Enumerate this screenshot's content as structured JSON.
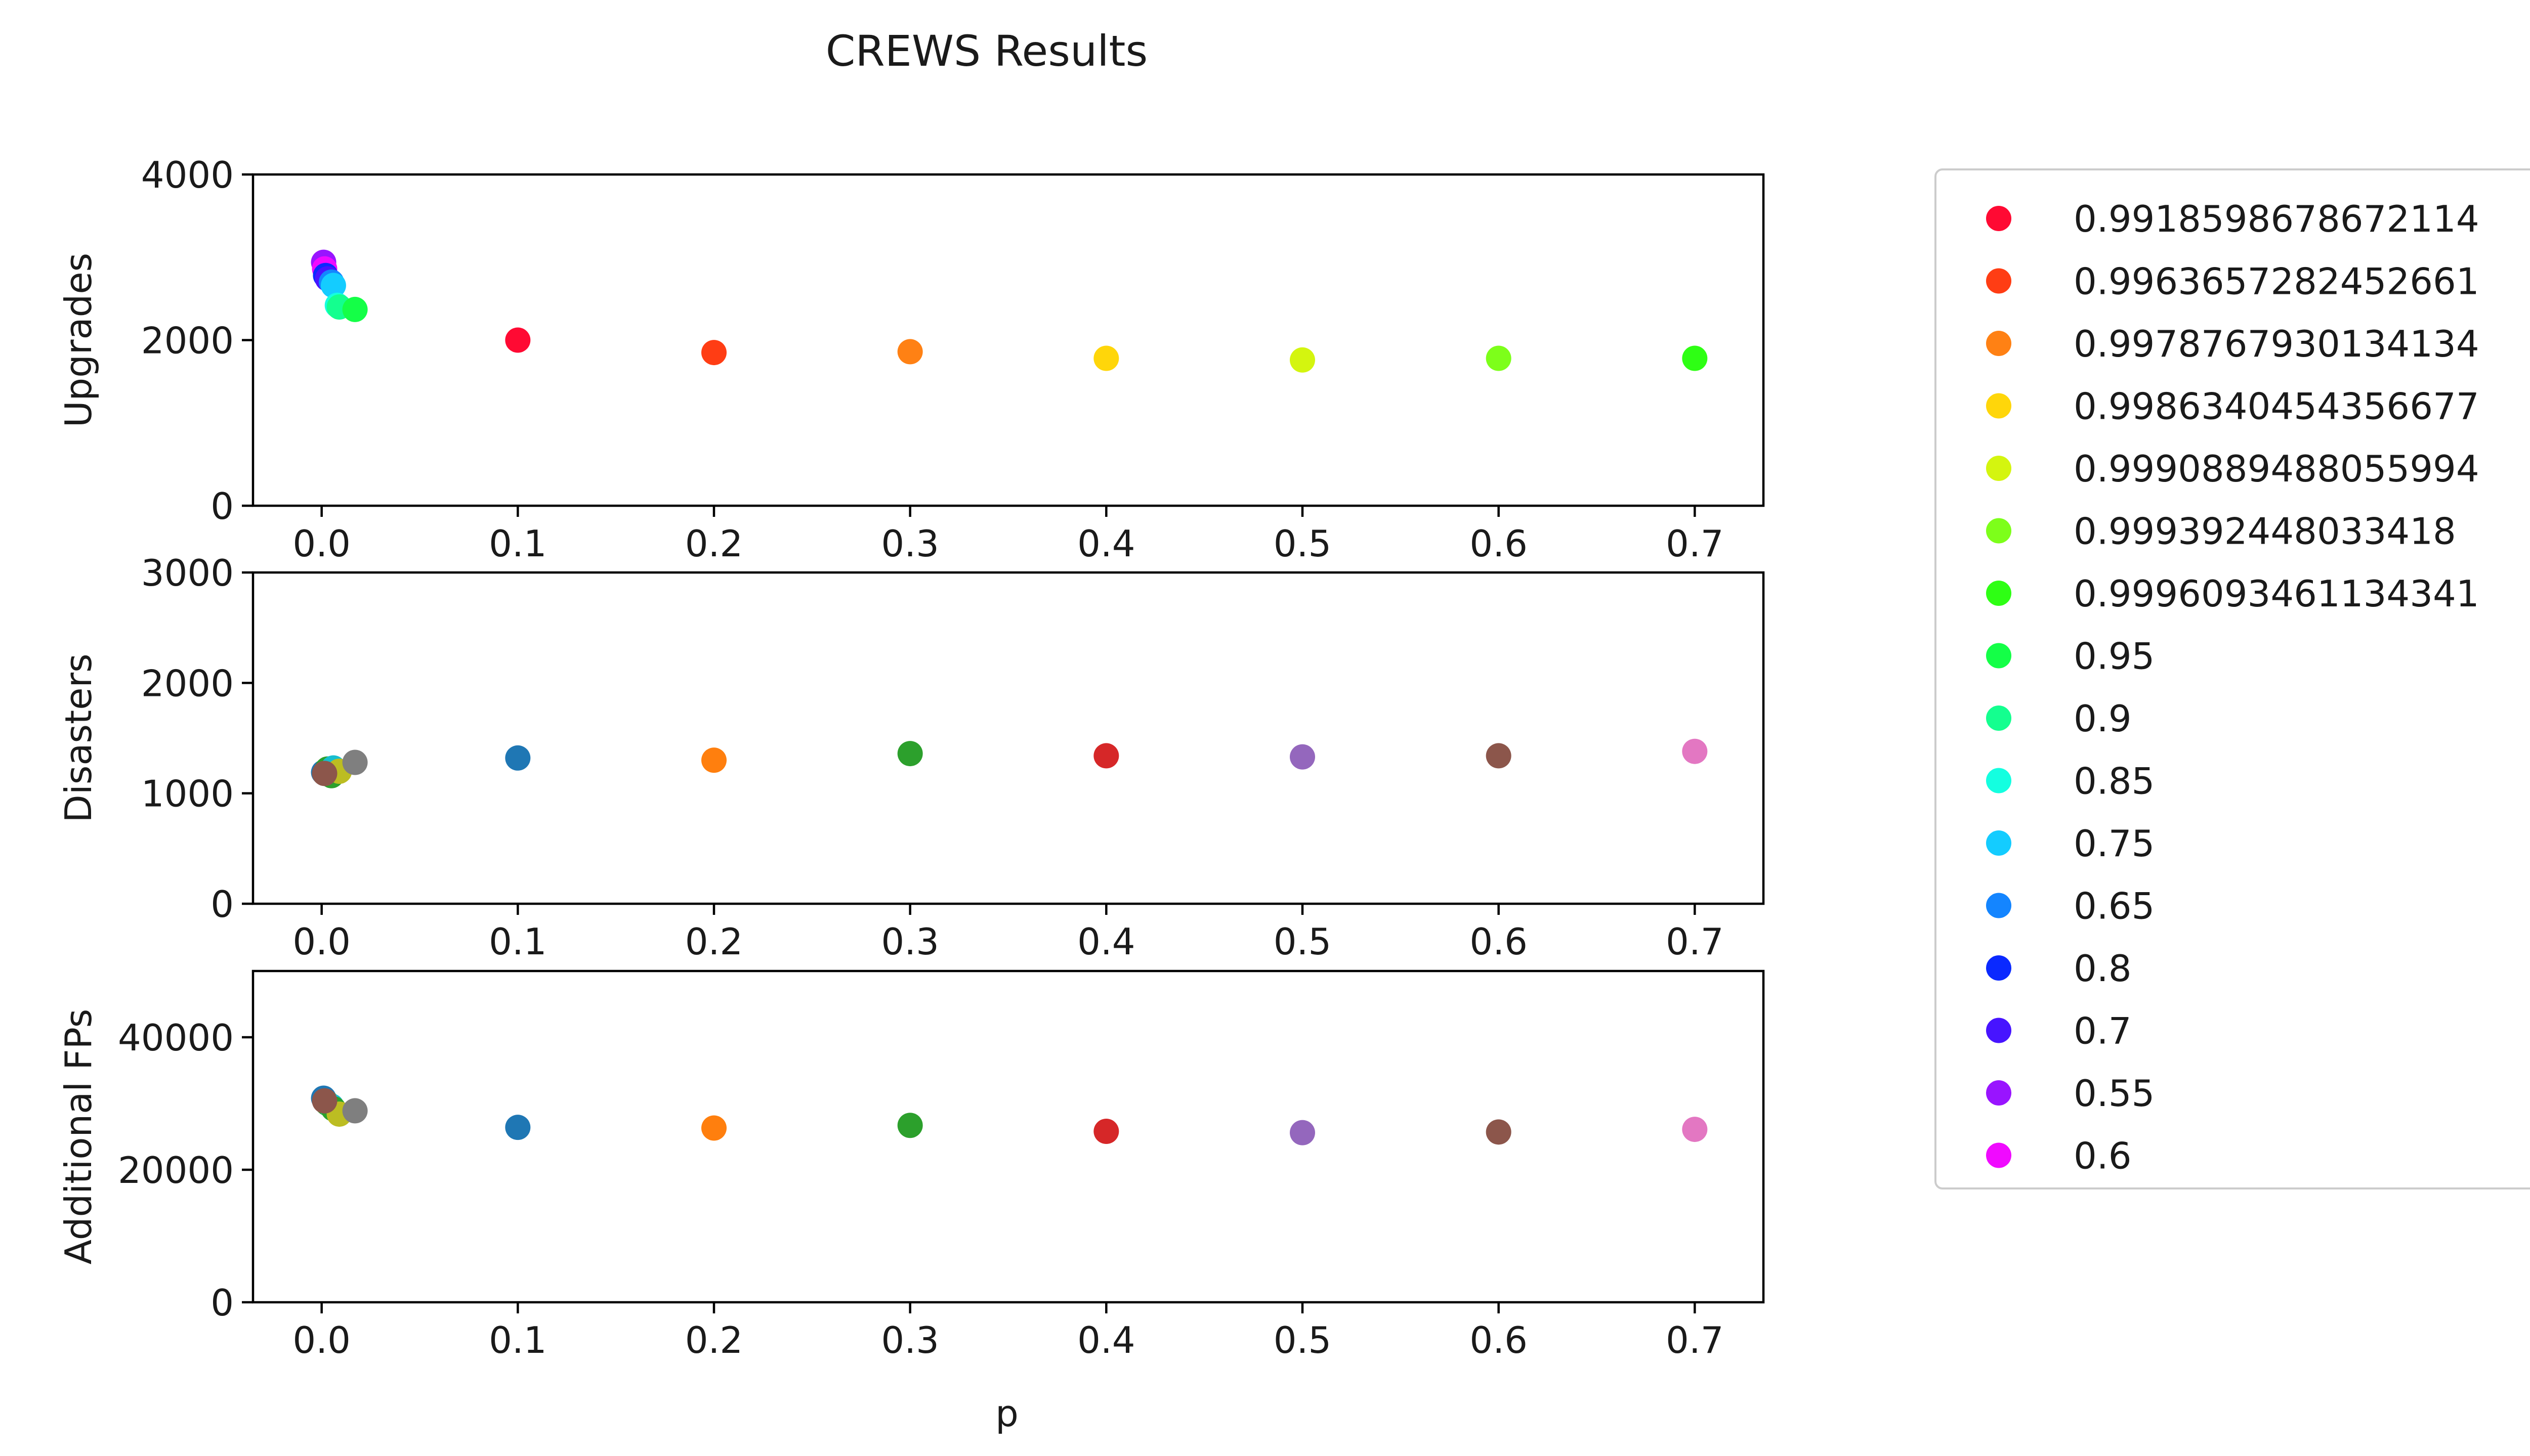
{
  "chart_data": {
    "type": "scatter",
    "title": "CREWS Results",
    "xlabel": "p",
    "x_ticks": [
      "0.0",
      "0.1",
      "0.2",
      "0.3",
      "0.4",
      "0.5",
      "0.6",
      "0.7"
    ],
    "xlim": [
      -0.035,
      0.735
    ],
    "legend_position": "right, outside plot area",
    "legend": [
      {
        "label": "0.9918598678672114",
        "color": "#ff0a33"
      },
      {
        "label": "0.9963657282452661",
        "color": "#ff3d14"
      },
      {
        "label": "0.9978767930134134",
        "color": "#ff8114"
      },
      {
        "label": "0.9986340454356677",
        "color": "#ffd60a"
      },
      {
        "label": "0.9990889488055994",
        "color": "#d4f50f"
      },
      {
        "label": "0.999392448033418",
        "color": "#7dff1a"
      },
      {
        "label": "0.9996093461134341",
        "color": "#2eff14"
      },
      {
        "label": "0.95",
        "color": "#14ff47"
      },
      {
        "label": "0.9",
        "color": "#14ff8f"
      },
      {
        "label": "0.85",
        "color": "#14ffe0"
      },
      {
        "label": "0.75",
        "color": "#14ccff"
      },
      {
        "label": "0.65",
        "color": "#1485ff"
      },
      {
        "label": "0.8",
        "color": "#0a29ff"
      },
      {
        "label": "0.7",
        "color": "#4714ff"
      },
      {
        "label": "0.55",
        "color": "#9914ff"
      },
      {
        "label": "0.6",
        "color": "#f00aff"
      }
    ],
    "panels": [
      {
        "ylabel": "Upgrades",
        "ylim": [
          0,
          4000
        ],
        "y_ticks": [
          "0",
          "2000",
          "4000"
        ],
        "points": [
          {
            "x": 0.001,
            "y": 2940,
            "color": "#9914ff"
          },
          {
            "x": 0.0015,
            "y": 2860,
            "color": "#f00aff"
          },
          {
            "x": 0.002,
            "y": 2780,
            "color": "#0a29ff"
          },
          {
            "x": 0.003,
            "y": 2740,
            "color": "#4714ff"
          },
          {
            "x": 0.005,
            "y": 2700,
            "color": "#1485ff"
          },
          {
            "x": 0.006,
            "y": 2660,
            "color": "#14ccff"
          },
          {
            "x": 0.008,
            "y": 2420,
            "color": "#14ffe0"
          },
          {
            "x": 0.009,
            "y": 2400,
            "color": "#14ff8f"
          },
          {
            "x": 0.017,
            "y": 2370,
            "color": "#14ff47"
          },
          {
            "x": 0.1,
            "y": 2000,
            "color": "#ff0a33"
          },
          {
            "x": 0.2,
            "y": 1850,
            "color": "#ff3d14"
          },
          {
            "x": 0.3,
            "y": 1860,
            "color": "#ff8114"
          },
          {
            "x": 0.4,
            "y": 1780,
            "color": "#ffd60a"
          },
          {
            "x": 0.5,
            "y": 1760,
            "color": "#d4f50f"
          },
          {
            "x": 0.6,
            "y": 1780,
            "color": "#7dff1a"
          },
          {
            "x": 0.7,
            "y": 1780,
            "color": "#2eff14"
          }
        ]
      },
      {
        "ylabel": "Disasters",
        "ylim": [
          0,
          3000
        ],
        "y_ticks": [
          "0",
          "1000",
          "2000",
          "3000"
        ],
        "points": [
          {
            "x": 0.001,
            "y": 1190,
            "color": "#1f77b4"
          },
          {
            "x": 0.003,
            "y": 1220,
            "color": "#2ca02c"
          },
          {
            "x": 0.005,
            "y": 1160,
            "color": "#2ca02c"
          },
          {
            "x": 0.006,
            "y": 1230,
            "color": "#17becf"
          },
          {
            "x": 0.009,
            "y": 1200,
            "color": "#bcbd22"
          },
          {
            "x": 0.0015,
            "y": 1180,
            "color": "#8c564b"
          },
          {
            "x": 0.017,
            "y": 1280,
            "color": "#7f7f7f"
          },
          {
            "x": 0.1,
            "y": 1320,
            "color": "#1f77b4"
          },
          {
            "x": 0.2,
            "y": 1300,
            "color": "#ff7f0e"
          },
          {
            "x": 0.3,
            "y": 1360,
            "color": "#2ca02c"
          },
          {
            "x": 0.4,
            "y": 1340,
            "color": "#d62728"
          },
          {
            "x": 0.5,
            "y": 1330,
            "color": "#9467bd"
          },
          {
            "x": 0.6,
            "y": 1340,
            "color": "#8c564b"
          },
          {
            "x": 0.7,
            "y": 1380,
            "color": "#e377c2"
          }
        ]
      },
      {
        "ylabel": "Additional FPs",
        "ylim": [
          0,
          50000
        ],
        "y_ticks": [
          "0",
          "20000",
          "40000"
        ],
        "points": [
          {
            "x": 0.001,
            "y": 30800,
            "color": "#1f77b4"
          },
          {
            "x": 0.003,
            "y": 30000,
            "color": "#2ca02c"
          },
          {
            "x": 0.005,
            "y": 29600,
            "color": "#17becf"
          },
          {
            "x": 0.006,
            "y": 29200,
            "color": "#2ca02c"
          },
          {
            "x": 0.009,
            "y": 28400,
            "color": "#bcbd22"
          },
          {
            "x": 0.0015,
            "y": 30400,
            "color": "#8c564b"
          },
          {
            "x": 0.017,
            "y": 28900,
            "color": "#7f7f7f"
          },
          {
            "x": 0.1,
            "y": 26400,
            "color": "#1f77b4"
          },
          {
            "x": 0.2,
            "y": 26300,
            "color": "#ff7f0e"
          },
          {
            "x": 0.3,
            "y": 26700,
            "color": "#2ca02c"
          },
          {
            "x": 0.4,
            "y": 25800,
            "color": "#d62728"
          },
          {
            "x": 0.5,
            "y": 25600,
            "color": "#9467bd"
          },
          {
            "x": 0.6,
            "y": 25700,
            "color": "#8c564b"
          },
          {
            "x": 0.7,
            "y": 26100,
            "color": "#e377c2"
          }
        ]
      }
    ]
  }
}
